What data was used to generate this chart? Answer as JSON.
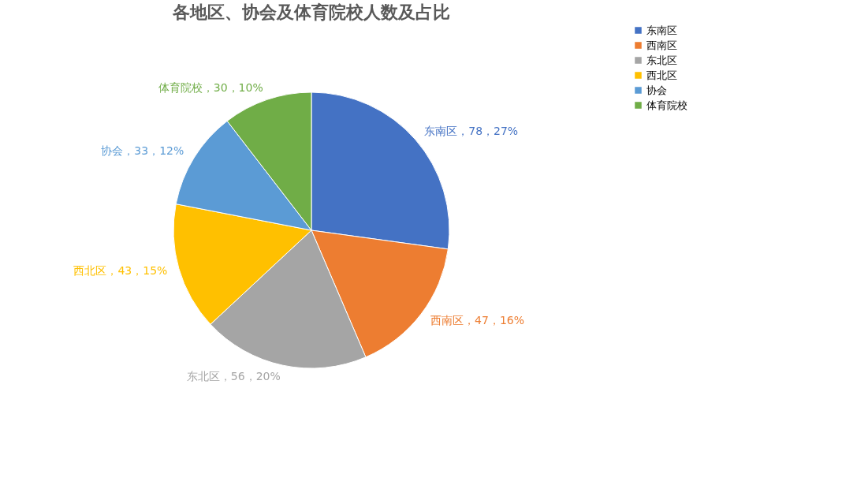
{
  "chart_data": {
    "type": "pie",
    "title": "各地区、协会及体育院校人数及占比",
    "categories": [
      "东南区",
      "西南区",
      "东北区",
      "西北区",
      "协会",
      "体育院校"
    ],
    "values": [
      78,
      47,
      56,
      43,
      33,
      30
    ],
    "colors": [
      "#4472c4",
      "#ed7d31",
      "#a5a5a5",
      "#ffc000",
      "#5b9bd5",
      "#70ad47"
    ],
    "value_labels": [
      "东南区，78，27%",
      "西南区，47，16%",
      "东北区，56，20%",
      "西北区，43，15%",
      "协会，33，12%",
      "体育院校，30，10%"
    ],
    "legend": "right"
  }
}
